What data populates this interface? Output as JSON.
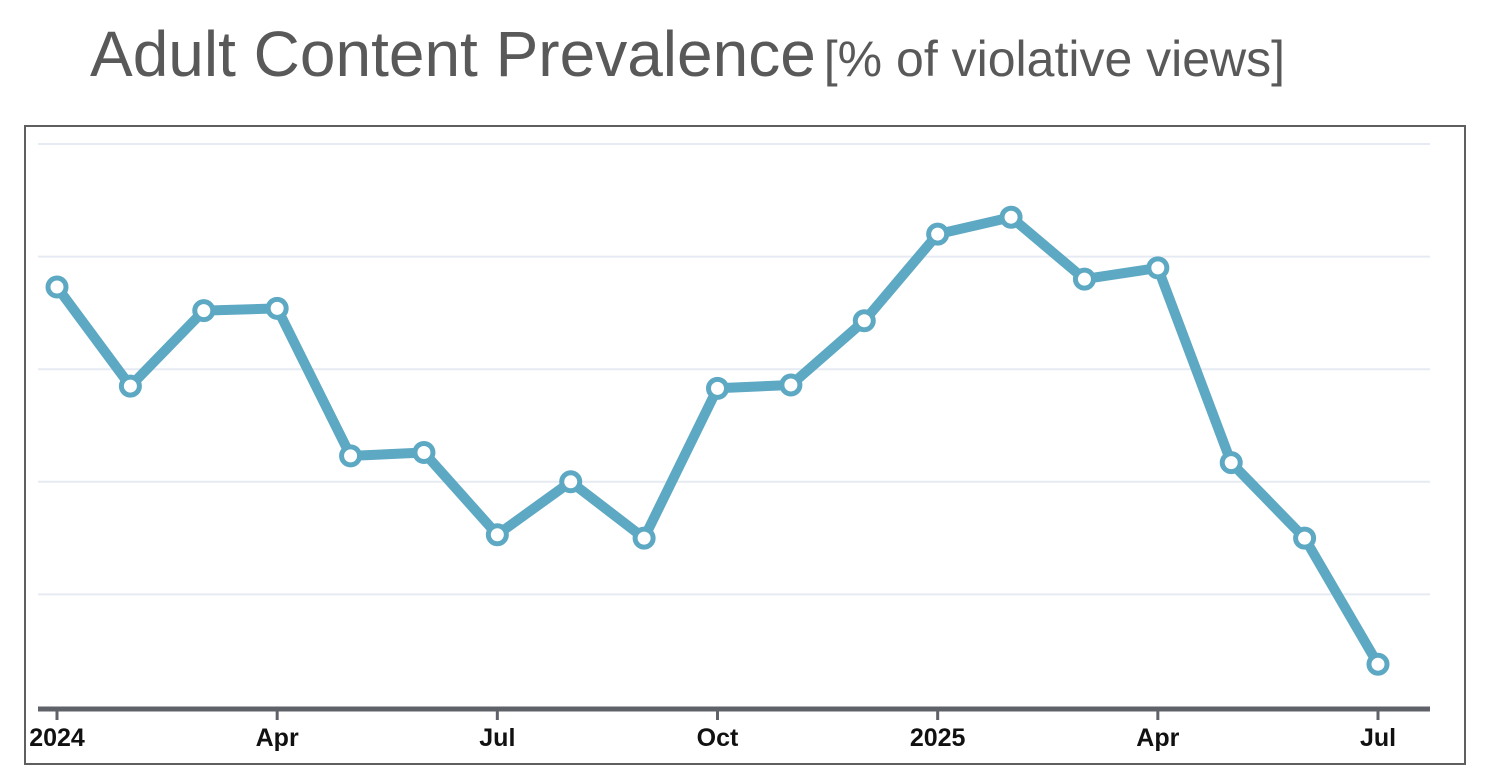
{
  "title": {
    "main": "Adult Content Prevalence",
    "unit": "[% of violative views]"
  },
  "chart_data": {
    "type": "line",
    "title": "Adult Content Prevalence [% of violative views]",
    "xlabel": "",
    "ylabel": "",
    "y_tick_labels_shown": false,
    "grid": true,
    "ylim": [
      0,
      5
    ],
    "x_tick_labels": [
      "2024",
      "Apr",
      "Jul",
      "Oct",
      "2025",
      "Apr",
      "Jul"
    ],
    "x_tick_indices": [
      0,
      3,
      6,
      9,
      12,
      15,
      18
    ],
    "series": [
      {
        "name": "Adult Content Prevalence",
        "color": "#5da8c3",
        "categories": [
          "Jan 2024",
          "Feb 2024",
          "Mar 2024",
          "Apr 2024",
          "May 2024",
          "Jun 2024",
          "Jul 2024",
          "Aug 2024",
          "Sep 2024",
          "Oct 2024",
          "Nov 2024",
          "Dec 2024",
          "Jan 2025",
          "Feb 2025",
          "Mar 2025",
          "Apr 2025",
          "May 2025",
          "Jun 2025",
          "Jul 2025"
        ],
        "values": [
          3.73,
          2.85,
          3.52,
          3.54,
          2.23,
          2.26,
          1.53,
          2.0,
          1.5,
          2.83,
          2.86,
          3.43,
          4.2,
          4.35,
          3.8,
          3.9,
          2.17,
          1.5,
          0.38
        ]
      }
    ]
  },
  "colors": {
    "title": "#595959",
    "grid": "#e6ebf3",
    "axis": "#5f6268",
    "line": "#5da8c3",
    "marker_fill": "#ffffff",
    "tick_text": "#111111"
  }
}
